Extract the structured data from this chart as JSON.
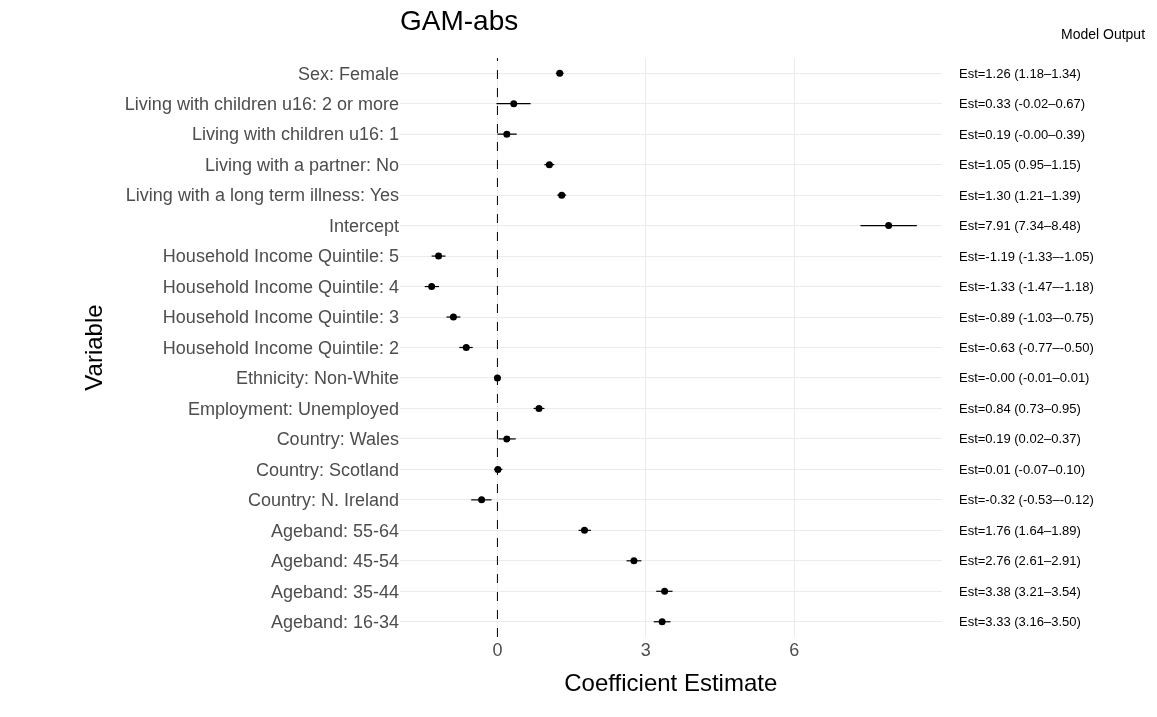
{
  "chart_data": {
    "type": "scatter",
    "orientation": "horizontal",
    "title": "GAM-abs",
    "xlabel": "Coefficient Estimate",
    "ylabel": "Variable",
    "annotations": [
      "Model Output",
      "Est=1.26 (1.18–1.34)",
      "Est=0.33 (-0.02–0.67)",
      "Est=0.19 (-0.00–0.39)",
      "Est=1.05 (0.95–1.15)",
      "Est=1.30 (1.21–1.39)",
      "Est=7.91 (7.34–8.48)",
      "Est=-1.19 (-1.33–-1.05)",
      "Est=-1.33 (-1.47–-1.18)",
      "Est=-0.89 (-1.03–-0.75)",
      "Est=-0.63 (-0.77–-0.50)",
      "Est=-0.00 (-0.01–0.01)",
      "Est=0.84 (0.73–0.95)",
      "Est=0.19 (0.02–0.37)",
      "Est=0.01 (-0.07–0.10)",
      "Est=-0.32 (-0.53–-0.12)",
      "Est=1.76 (1.64–1.89)",
      "Est=2.76 (2.61–2.91)",
      "Est=3.38 (3.21–3.54)",
      "Est=3.33 (3.16–3.50)"
    ],
    "categories": [
      "Sex: Female",
      "Living with children u16: 2 or more",
      "Living with children u16: 1",
      "Living with a partner: No",
      "Living with a long term illness: Yes",
      "Intercept",
      "Household Income Quintile: 5",
      "Household Income Quintile: 4",
      "Household Income Quintile: 3",
      "Household Income Quintile: 2",
      "Ethnicity: Non-White",
      "Employment: Unemployed",
      "Country: Wales",
      "Country: Scotland",
      "Country: N. Ireland",
      "Ageband: 55-64",
      "Ageband: 45-54",
      "Ageband: 35-44",
      "Ageband: 16-34"
    ],
    "series": [
      {
        "color": "#000000",
        "values": [
          1.26,
          0.33,
          0.19,
          1.05,
          1.3,
          7.91,
          -1.19,
          -1.33,
          -0.89,
          -0.63,
          0.0,
          0.84,
          0.19,
          0.01,
          -0.32,
          1.76,
          2.76,
          3.38,
          3.33
        ],
        "errors": [
          [
            1.18,
            1.34
          ],
          [
            -0.02,
            0.67
          ],
          [
            0.0,
            0.39
          ],
          [
            0.95,
            1.15
          ],
          [
            1.21,
            1.39
          ],
          [
            7.34,
            8.48
          ],
          [
            -1.33,
            -1.05
          ],
          [
            -1.47,
            -1.18
          ],
          [
            -1.03,
            -0.75
          ],
          [
            -0.77,
            -0.5
          ],
          null,
          [
            0.73,
            0.95
          ],
          [
            0.02,
            0.37
          ],
          [
            -0.07,
            0.1
          ],
          [
            -0.53,
            -0.12
          ],
          [
            1.64,
            1.89
          ],
          [
            2.61,
            2.91
          ],
          [
            3.21,
            3.54
          ],
          [
            3.16,
            3.5
          ]
        ]
      }
    ],
    "xlim": [
      -1.97,
      8.98
    ],
    "xticks": [
      0,
      3,
      6
    ],
    "ref_lines": [
      {
        "axis": "x",
        "value": 0,
        "color": "#000000",
        "line_style": "dashed"
      }
    ],
    "grid": true,
    "marker": "circle"
  }
}
